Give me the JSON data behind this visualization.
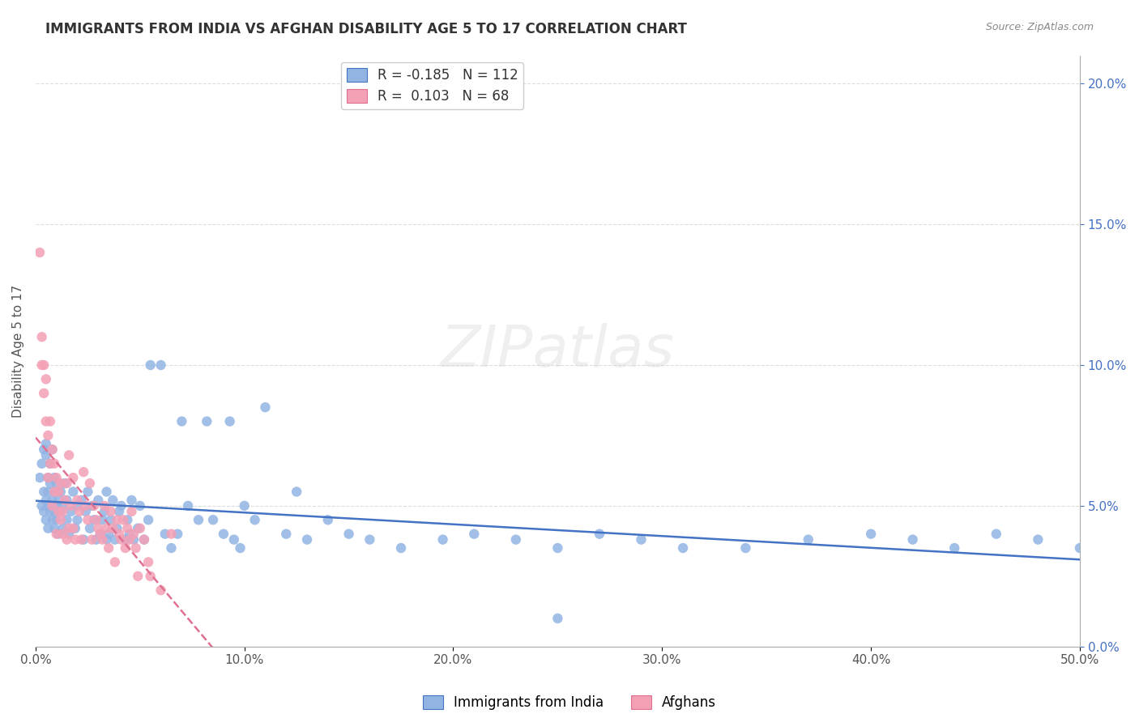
{
  "title": "IMMIGRANTS FROM INDIA VS AFGHAN DISABILITY AGE 5 TO 17 CORRELATION CHART",
  "source": "Source: ZipAtlas.com",
  "ylabel": "Disability Age 5 to 17",
  "xlabel": "",
  "xlim": [
    0.0,
    0.5
  ],
  "ylim": [
    0.0,
    0.21
  ],
  "xticks": [
    0.0,
    0.1,
    0.2,
    0.3,
    0.4,
    0.5
  ],
  "xtick_labels": [
    "0.0%",
    "10.0%",
    "20.0%",
    "30.0%",
    "40.0%",
    "50.0%"
  ],
  "yticks_right": [
    0.0,
    0.05,
    0.1,
    0.15,
    0.2
  ],
  "ytick_labels_right": [
    "0.0%",
    "5.0%",
    "10.0%",
    "15.0%",
    "20.0%"
  ],
  "india_color": "#92b4e3",
  "afghan_color": "#f4a0b5",
  "india_line_color": "#4472c4",
  "afghan_line_color": "#e07090",
  "india_R": -0.185,
  "india_N": 112,
  "afghan_R": 0.103,
  "afghan_N": 68,
  "watermark": "ZIPatlas",
  "legend_label_india": "Immigrants from India",
  "legend_label_afghan": "Afghans",
  "india_scatter_x": [
    0.002,
    0.003,
    0.003,
    0.004,
    0.004,
    0.004,
    0.005,
    0.005,
    0.005,
    0.005,
    0.006,
    0.006,
    0.006,
    0.006,
    0.007,
    0.007,
    0.007,
    0.008,
    0.008,
    0.008,
    0.009,
    0.009,
    0.009,
    0.009,
    0.01,
    0.01,
    0.01,
    0.011,
    0.011,
    0.012,
    0.012,
    0.013,
    0.013,
    0.014,
    0.015,
    0.015,
    0.016,
    0.017,
    0.018,
    0.019,
    0.02,
    0.02,
    0.022,
    0.023,
    0.024,
    0.025,
    0.026,
    0.027,
    0.028,
    0.029,
    0.03,
    0.031,
    0.032,
    0.033,
    0.034,
    0.034,
    0.035,
    0.036,
    0.037,
    0.038,
    0.039,
    0.04,
    0.041,
    0.043,
    0.044,
    0.045,
    0.046,
    0.047,
    0.049,
    0.05,
    0.052,
    0.054,
    0.055,
    0.06,
    0.062,
    0.065,
    0.068,
    0.07,
    0.073,
    0.078,
    0.082,
    0.085,
    0.09,
    0.093,
    0.095,
    0.098,
    0.1,
    0.105,
    0.11,
    0.12,
    0.125,
    0.13,
    0.14,
    0.15,
    0.16,
    0.175,
    0.195,
    0.21,
    0.23,
    0.25,
    0.27,
    0.29,
    0.31,
    0.34,
    0.37,
    0.4,
    0.42,
    0.44,
    0.46,
    0.48,
    0.5,
    0.25
  ],
  "india_scatter_y": [
    0.06,
    0.05,
    0.065,
    0.055,
    0.07,
    0.048,
    0.052,
    0.045,
    0.068,
    0.072,
    0.05,
    0.06,
    0.042,
    0.055,
    0.048,
    0.058,
    0.065,
    0.045,
    0.052,
    0.07,
    0.048,
    0.055,
    0.042,
    0.06,
    0.05,
    0.045,
    0.058,
    0.052,
    0.04,
    0.055,
    0.048,
    0.05,
    0.042,
    0.058,
    0.045,
    0.052,
    0.04,
    0.048,
    0.055,
    0.042,
    0.05,
    0.045,
    0.052,
    0.038,
    0.048,
    0.055,
    0.042,
    0.05,
    0.045,
    0.038,
    0.052,
    0.04,
    0.045,
    0.048,
    0.038,
    0.055,
    0.04,
    0.045,
    0.052,
    0.038,
    0.042,
    0.048,
    0.05,
    0.038,
    0.045,
    0.04,
    0.052,
    0.038,
    0.042,
    0.05,
    0.038,
    0.045,
    0.1,
    0.1,
    0.04,
    0.035,
    0.04,
    0.08,
    0.05,
    0.045,
    0.08,
    0.045,
    0.04,
    0.08,
    0.038,
    0.035,
    0.05,
    0.045,
    0.085,
    0.04,
    0.055,
    0.038,
    0.045,
    0.04,
    0.038,
    0.035,
    0.038,
    0.04,
    0.038,
    0.035,
    0.04,
    0.038,
    0.035,
    0.035,
    0.038,
    0.04,
    0.038,
    0.035,
    0.04,
    0.038,
    0.035,
    0.01
  ],
  "afghan_scatter_x": [
    0.002,
    0.003,
    0.003,
    0.004,
    0.004,
    0.005,
    0.005,
    0.006,
    0.006,
    0.007,
    0.007,
    0.008,
    0.008,
    0.009,
    0.009,
    0.01,
    0.01,
    0.011,
    0.011,
    0.012,
    0.012,
    0.013,
    0.013,
    0.014,
    0.015,
    0.015,
    0.016,
    0.016,
    0.017,
    0.018,
    0.018,
    0.019,
    0.02,
    0.021,
    0.022,
    0.023,
    0.024,
    0.025,
    0.026,
    0.027,
    0.028,
    0.029,
    0.03,
    0.031,
    0.032,
    0.033,
    0.034,
    0.035,
    0.036,
    0.037,
    0.038,
    0.039,
    0.04,
    0.041,
    0.042,
    0.043,
    0.044,
    0.045,
    0.046,
    0.047,
    0.048,
    0.049,
    0.05,
    0.052,
    0.054,
    0.055,
    0.06,
    0.065
  ],
  "afghan_scatter_y": [
    0.14,
    0.1,
    0.11,
    0.09,
    0.1,
    0.08,
    0.095,
    0.06,
    0.075,
    0.065,
    0.08,
    0.05,
    0.07,
    0.055,
    0.065,
    0.04,
    0.06,
    0.048,
    0.055,
    0.045,
    0.058,
    0.048,
    0.04,
    0.052,
    0.038,
    0.058,
    0.042,
    0.068,
    0.05,
    0.042,
    0.06,
    0.038,
    0.052,
    0.048,
    0.038,
    0.062,
    0.05,
    0.045,
    0.058,
    0.038,
    0.05,
    0.045,
    0.042,
    0.04,
    0.038,
    0.05,
    0.042,
    0.035,
    0.048,
    0.042,
    0.03,
    0.045,
    0.04,
    0.038,
    0.045,
    0.035,
    0.042,
    0.038,
    0.048,
    0.04,
    0.035,
    0.025,
    0.042,
    0.038,
    0.03,
    0.025,
    0.02,
    0.04
  ],
  "background_color": "#ffffff",
  "grid_color": "#dddddd"
}
